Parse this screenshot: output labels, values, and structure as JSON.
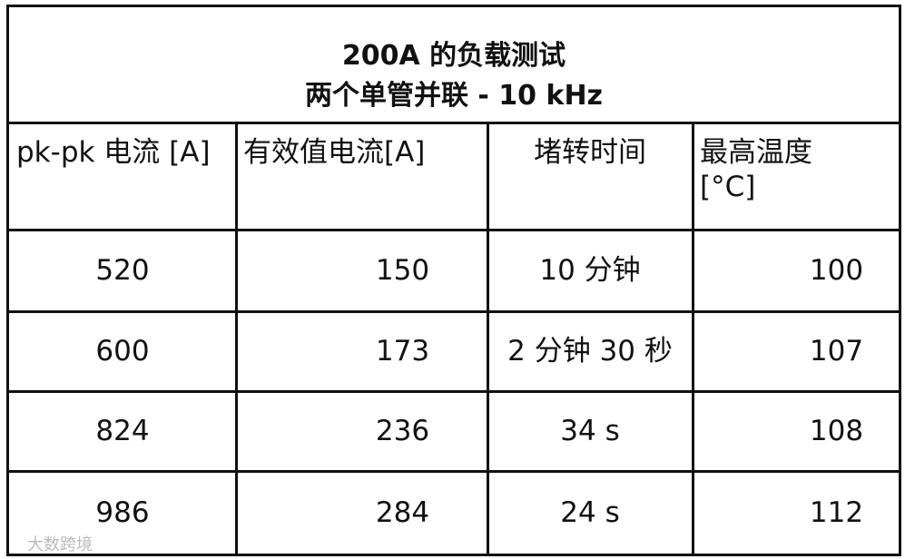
{
  "table": {
    "title": [
      "200A  的负载测试",
      "两个单管并联  - 10 kHz"
    ],
    "header": [
      "pk-pk  电流  [A]",
      "有效值电流[A]",
      "堵转时间",
      "最高温度 [°C]"
    ],
    "rows": [
      [
        520,
        150,
        "10  分钟",
        100
      ],
      [
        600,
        173,
        "2 分钟 30 秒",
        107
      ],
      [
        824,
        236,
        "34 s",
        108
      ],
      [
        986,
        284,
        "24 s",
        112
      ]
    ]
  },
  "watermark": "大数跨境"
}
